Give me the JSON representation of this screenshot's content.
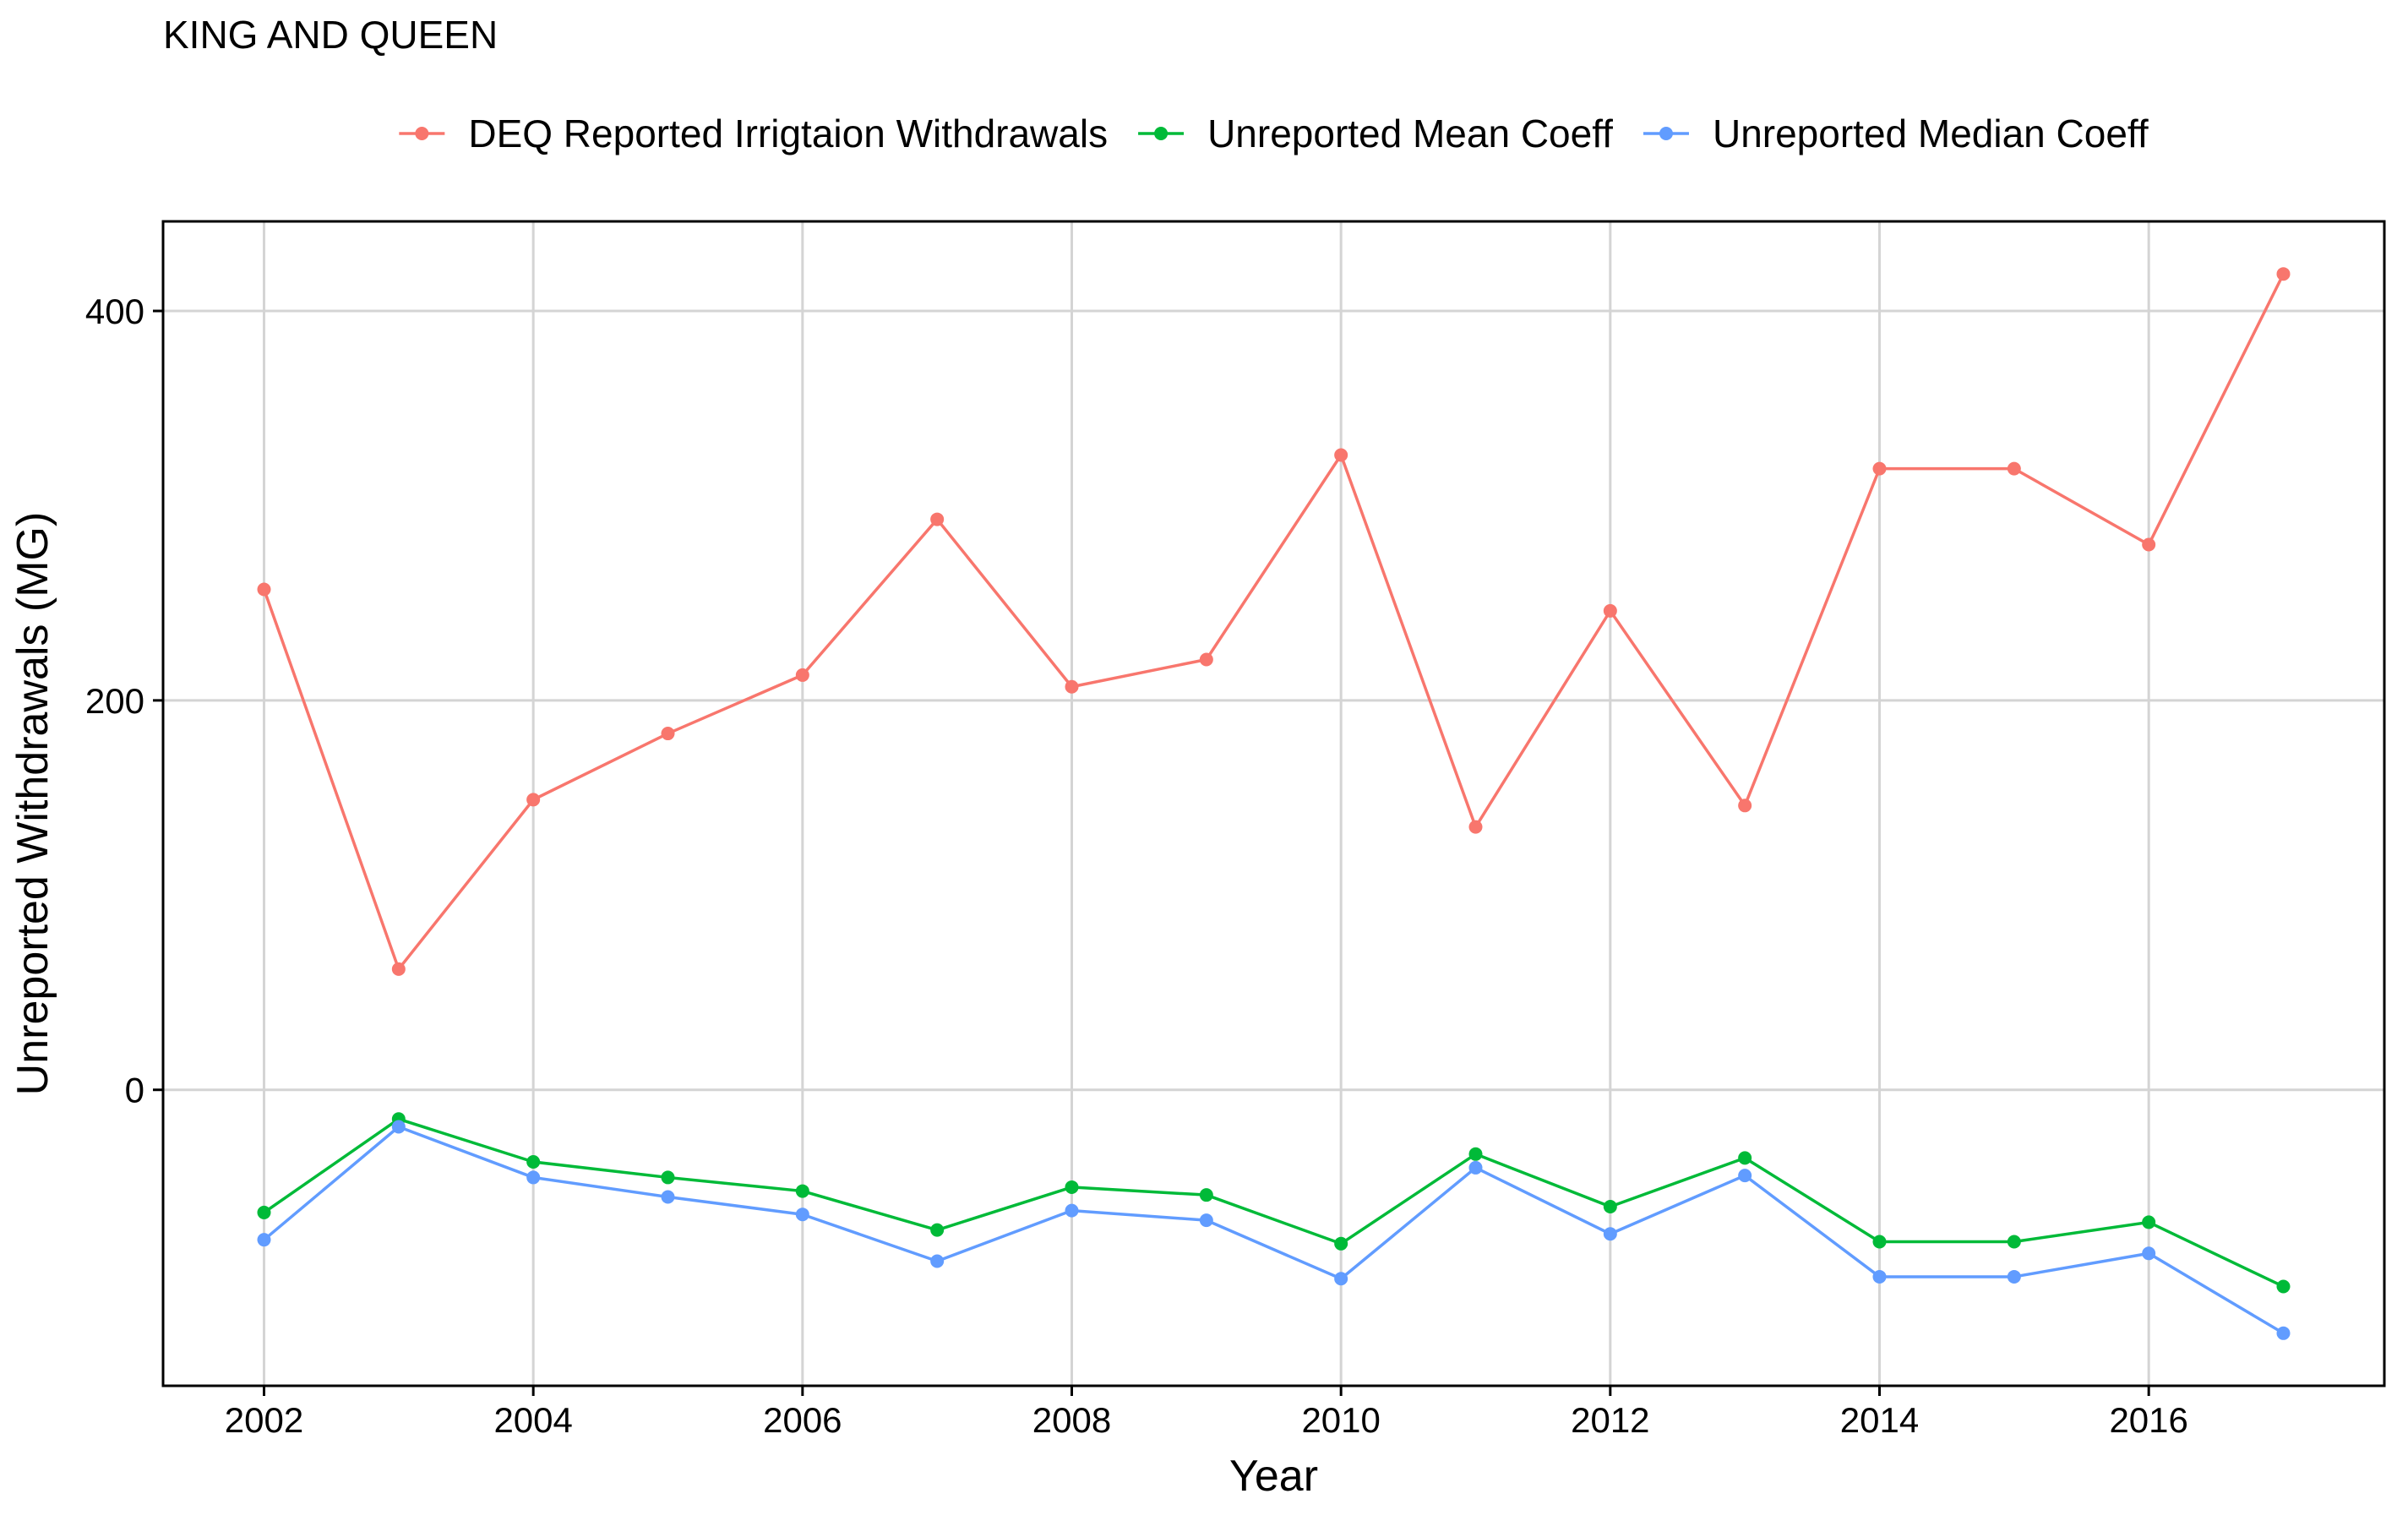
{
  "chart_data": {
    "type": "line",
    "title": "KING AND QUEEN",
    "xlabel": "Year",
    "ylabel": "Unreported Withdrawals (MG)",
    "x": [
      2002,
      2003,
      2004,
      2005,
      2006,
      2007,
      2008,
      2009,
      2010,
      2011,
      2012,
      2013,
      2014,
      2015,
      2016,
      2017
    ],
    "xlim": [
      2001.25,
      2017.75
    ],
    "ylim": [
      -152,
      446
    ],
    "x_ticks": [
      2002,
      2004,
      2006,
      2008,
      2010,
      2012,
      2014,
      2016
    ],
    "y_ticks": [
      0,
      200,
      400
    ],
    "grid": true,
    "legend_position": "top",
    "series": [
      {
        "name": "DEQ Reported Irrigtaion Withdrawals",
        "color": "#F8766D",
        "values": [
          257,
          62,
          149,
          183,
          213,
          293,
          207,
          221,
          326,
          135,
          246,
          146,
          319,
          319,
          280,
          419
        ]
      },
      {
        "name": "Unreported Mean Coeff",
        "color": "#00BA38",
        "values": [
          -63,
          -15,
          -37,
          -45,
          -52,
          -72,
          -50,
          -54,
          -79,
          -33,
          -60,
          -35,
          -78,
          -78,
          -68,
          -101
        ]
      },
      {
        "name": "Unreported Median Coeff",
        "color": "#619CFF",
        "values": [
          -77,
          -19,
          -45,
          -55,
          -64,
          -88,
          -62,
          -67,
          -97,
          -40,
          -74,
          -44,
          -96,
          -96,
          -84,
          -125
        ]
      }
    ]
  }
}
